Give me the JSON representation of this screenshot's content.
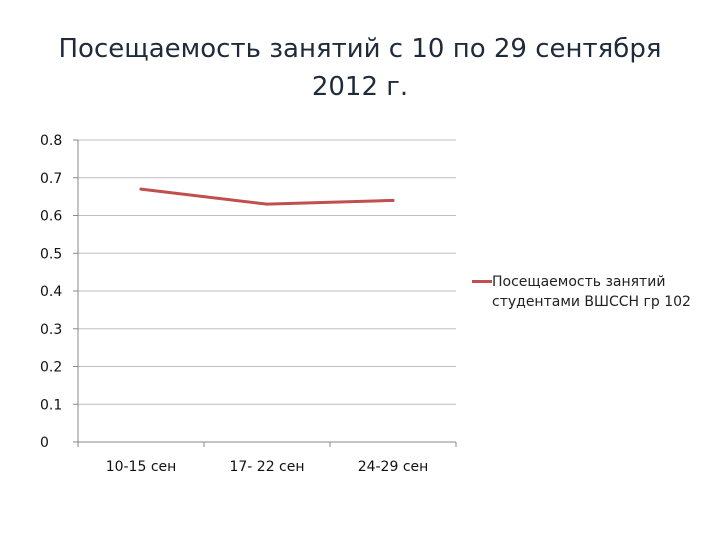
{
  "slide": {
    "title": "Посещаемость занятий с 10 по 29 сентября 2012 г."
  },
  "chart_data": {
    "type": "line",
    "title": "Посещаемость занятий с 10 по 29 сентября 2012 г.",
    "categories": [
      "10-15 сен",
      "17- 22 сен",
      "24-29 сен"
    ],
    "y_ticks": [
      "0",
      "0.1",
      "0.2",
      "0.3",
      "0.4",
      "0.5",
      "0.6",
      "0.7",
      "0.8"
    ],
    "ylim": [
      0,
      0.8
    ],
    "grid": true,
    "legend_position": "right",
    "series": [
      {
        "name": "Посещаемость занятий студентами ВШССН гр 102",
        "values": [
          0.67,
          0.63,
          0.64
        ],
        "color": "#c0504d"
      }
    ],
    "xlabel": "",
    "ylabel": ""
  }
}
